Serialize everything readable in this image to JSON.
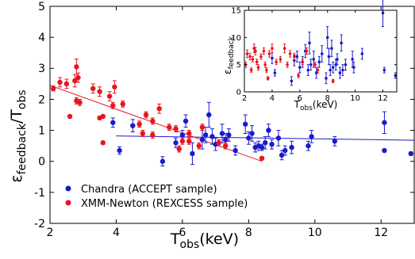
{
  "chart_data": [
    {
      "type": "scatter",
      "xlabel": "T",
      "xlabel_sub": "obs",
      "xlabel_unit": "(keV)",
      "ylabel": "ε",
      "ylabel_sub": "feedback",
      "ylabel_tail": "/T",
      "ylabel_tail_sub": "obs",
      "xlim": [
        2,
        13
      ],
      "ylim": [
        -2,
        5
      ],
      "xticks": [
        2,
        4,
        6,
        8,
        10,
        12
      ],
      "yticks": [
        -2,
        -1,
        0,
        1,
        2,
        3,
        4,
        5
      ],
      "legend_position": "bottom-left",
      "series": [
        {
          "name": "Chandra (ACCEPT sample)",
          "color": "#1a1acc",
          "points": [
            [
              3.9,
              1.25,
              0.15
            ],
            [
              4.5,
              1.15,
              0.2
            ],
            [
              4.1,
              0.35,
              0.12
            ],
            [
              5.4,
              0.0,
              0.15
            ],
            [
              5.8,
              0.6,
              0.15
            ],
            [
              6.0,
              0.85,
              0.15
            ],
            [
              6.1,
              1.3,
              0.2
            ],
            [
              6.3,
              0.25,
              0.35
            ],
            [
              6.6,
              0.7,
              0.3
            ],
            [
              6.7,
              0.85,
              0.25
            ],
            [
              6.8,
              1.5,
              0.4
            ],
            [
              6.9,
              0.8,
              0.25
            ],
            [
              7.0,
              0.55,
              0.2
            ],
            [
              7.2,
              0.9,
              0.3
            ],
            [
              7.3,
              0.7,
              0.2
            ],
            [
              7.4,
              0.85,
              0.2
            ],
            [
              7.6,
              0.35,
              0.15
            ],
            [
              7.9,
              1.2,
              0.3
            ],
            [
              8.0,
              0.75,
              0.2
            ],
            [
              8.1,
              0.9,
              0.25
            ],
            [
              8.2,
              0.45,
              0.15
            ],
            [
              8.3,
              0.5,
              0.15
            ],
            [
              8.4,
              0.45,
              0.1
            ],
            [
              8.5,
              0.6,
              0.2
            ],
            [
              8.6,
              1.0,
              0.2
            ],
            [
              8.7,
              0.55,
              0.15
            ],
            [
              8.9,
              0.75,
              0.25
            ],
            [
              9.0,
              0.2,
              0.15
            ],
            [
              9.1,
              0.35,
              0.15
            ],
            [
              9.3,
              0.45,
              0.2
            ],
            [
              9.8,
              0.5,
              0.15
            ],
            [
              9.9,
              0.8,
              0.2
            ],
            [
              10.6,
              0.65,
              0.15
            ],
            [
              12.1,
              1.25,
              0.35
            ],
            [
              12.1,
              0.35,
              0.05
            ],
            [
              12.9,
              0.25,
              0.05
            ]
          ],
          "fit": [
            [
              4.0,
              0.82
            ],
            [
              13.0,
              0.68
            ]
          ]
        },
        {
          "name": "XMM-Newton (REXCESS sample)",
          "color": "#e8141e",
          "points": [
            [
              2.1,
              2.35,
              0.08
            ],
            [
              2.3,
              2.55,
              0.15
            ],
            [
              2.5,
              2.5,
              0.15
            ],
            [
              2.6,
              1.45,
              0.05
            ],
            [
              2.75,
              2.6,
              0.2
            ],
            [
              2.8,
              3.05,
              0.25
            ],
            [
              2.85,
              2.7,
              0.15
            ],
            [
              2.8,
              1.95,
              0.1
            ],
            [
              2.9,
              1.9,
              0.1
            ],
            [
              3.3,
              2.35,
              0.15
            ],
            [
              3.5,
              2.25,
              0.15
            ],
            [
              3.5,
              1.4,
              0.05
            ],
            [
              3.6,
              1.45,
              0.05
            ],
            [
              3.6,
              0.6,
              0.05
            ],
            [
              3.8,
              2.1,
              0.15
            ],
            [
              3.9,
              1.8,
              0.1
            ],
            [
              3.95,
              2.4,
              0.2
            ],
            [
              4.2,
              1.85,
              0.1
            ],
            [
              4.7,
              1.2,
              0.1
            ],
            [
              4.8,
              0.9,
              0.1
            ],
            [
              4.9,
              1.5,
              0.1
            ],
            [
              5.1,
              1.3,
              0.1
            ],
            [
              5.1,
              0.85,
              0.1
            ],
            [
              5.3,
              1.7,
              0.15
            ],
            [
              5.6,
              1.1,
              0.1
            ],
            [
              5.8,
              1.05,
              0.1
            ],
            [
              5.9,
              0.4,
              0.1
            ],
            [
              6.0,
              0.65,
              0.1
            ],
            [
              6.2,
              0.9,
              0.1
            ],
            [
              6.2,
              0.65,
              0.1
            ],
            [
              6.5,
              0.5,
              0.1
            ],
            [
              6.6,
              1.1,
              0.1
            ],
            [
              7.1,
              0.6,
              0.1
            ],
            [
              7.3,
              0.5,
              0.1
            ],
            [
              8.4,
              0.1,
              0.05
            ]
          ],
          "fit": [
            [
              2.0,
              2.45
            ],
            [
              8.4,
              0.0
            ]
          ]
        }
      ]
    },
    {
      "type": "scatter",
      "xlabel": "T",
      "xlabel_sub": "obs",
      "xlabel_unit": "(keV)",
      "ylabel": "ε",
      "ylabel_sub": "feedback",
      "xlim": [
        2,
        13
      ],
      "ylim": [
        0,
        15
      ],
      "xticks": [
        2,
        4,
        6,
        8,
        10,
        12
      ],
      "yticks": [
        0,
        5,
        10,
        15
      ],
      "series": [
        {
          "color": "#1a1acc",
          "points": [
            [
              4.0,
              6.2,
              1.0
            ],
            [
              4.2,
              3.5,
              0.6
            ],
            [
              5.4,
              2.0,
              0.8
            ],
            [
              5.6,
              5.8,
              1.0
            ],
            [
              5.8,
              6.5,
              1.0
            ],
            [
              6.0,
              4.5,
              1.0
            ],
            [
              6.2,
              5.5,
              1.0
            ],
            [
              6.4,
              7.5,
              1.2
            ],
            [
              6.6,
              4.0,
              1.0
            ],
            [
              6.7,
              9.0,
              2.0
            ],
            [
              6.8,
              5.0,
              1.0
            ],
            [
              7.0,
              6.0,
              1.5
            ],
            [
              7.2,
              3.5,
              1.0
            ],
            [
              7.4,
              5.5,
              1.0
            ],
            [
              7.6,
              7.0,
              1.5
            ],
            [
              7.9,
              2.5,
              1.0
            ],
            [
              8.0,
              10.0,
              2.0
            ],
            [
              8.1,
              6.5,
              1.5
            ],
            [
              8.2,
              4.0,
              1.0
            ],
            [
              8.3,
              8.0,
              1.5
            ],
            [
              8.4,
              4.5,
              1.0
            ],
            [
              8.6,
              5.0,
              1.0
            ],
            [
              8.7,
              6.0,
              1.0
            ],
            [
              8.9,
              3.5,
              1.0
            ],
            [
              9.0,
              9.0,
              1.5
            ],
            [
              9.1,
              4.0,
              1.0
            ],
            [
              9.3,
              5.0,
              1.0
            ],
            [
              9.8,
              6.0,
              1.5
            ],
            [
              9.9,
              4.5,
              1.0
            ],
            [
              10.5,
              7.0,
              1.0
            ],
            [
              12.0,
              14.5,
              2.5
            ],
            [
              12.1,
              4.0,
              0.5
            ],
            [
              12.9,
              3.0,
              0.5
            ]
          ]
        },
        {
          "color": "#e8141e",
          "points": [
            [
              2.1,
              5.0,
              0.5
            ],
            [
              2.2,
              7.0,
              0.7
            ],
            [
              2.4,
              6.5,
              0.6
            ],
            [
              2.5,
              4.0,
              0.4
            ],
            [
              2.6,
              6.0,
              0.5
            ],
            [
              2.7,
              8.0,
              0.8
            ],
            [
              2.8,
              7.5,
              0.7
            ],
            [
              2.9,
              5.5,
              0.5
            ],
            [
              3.0,
              4.5,
              0.5
            ],
            [
              3.2,
              6.5,
              0.5
            ],
            [
              3.4,
              7.5,
              0.6
            ],
            [
              3.5,
              5.0,
              0.5
            ],
            [
              3.6,
              4.0,
              0.4
            ],
            [
              3.7,
              2.5,
              0.3
            ],
            [
              3.8,
              7.0,
              0.6
            ],
            [
              4.0,
              8.0,
              0.8
            ],
            [
              4.3,
              5.5,
              0.5
            ],
            [
              4.6,
              6.0,
              0.5
            ],
            [
              4.9,
              8.0,
              0.8
            ],
            [
              5.1,
              5.0,
              0.5
            ],
            [
              5.3,
              7.0,
              0.6
            ],
            [
              5.6,
              6.5,
              0.6
            ],
            [
              5.9,
              3.0,
              0.4
            ],
            [
              6.2,
              5.5,
              0.5
            ],
            [
              6.5,
              7.5,
              0.6
            ],
            [
              7.1,
              5.0,
              0.5
            ],
            [
              7.3,
              4.0,
              0.5
            ],
            [
              8.4,
              2.0,
              0.3
            ]
          ]
        }
      ]
    }
  ]
}
